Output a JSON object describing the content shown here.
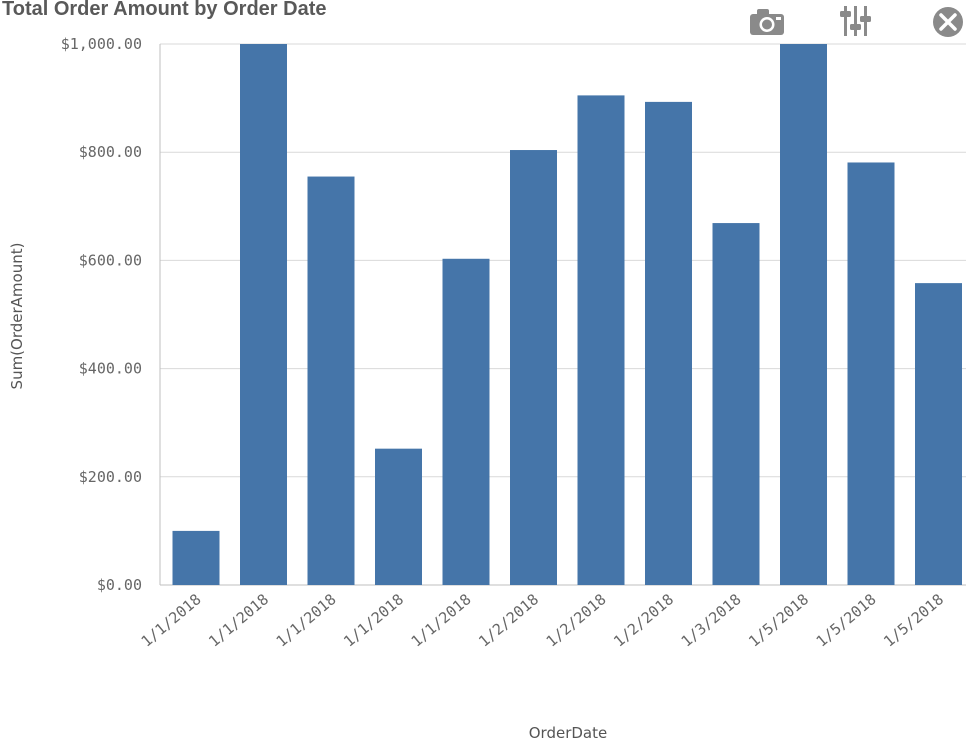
{
  "title": "Total Order Amount by Order Date",
  "toolbar": {
    "icons": [
      "camera-icon",
      "sliders-icon",
      "close-icon"
    ]
  },
  "colors": {
    "bar": "#4575a9",
    "grid": "#d9d9d9",
    "axis": "#bfbfbf"
  },
  "chart_data": {
    "type": "bar",
    "title": "Total Order Amount by Order Date",
    "xlabel": "OrderDate",
    "ylabel": "Sum(OrderAmount)",
    "categories": [
      "1/1/2018",
      "1/1/2018",
      "1/1/2018",
      "1/1/2018",
      "1/1/2018",
      "1/2/2018",
      "1/2/2018",
      "1/2/2018",
      "1/3/2018",
      "1/5/2018",
      "1/5/2018",
      "1/5/2018"
    ],
    "values": [
      100,
      1000,
      755,
      252,
      603,
      804,
      905,
      893,
      669,
      1000,
      781,
      558
    ],
    "ylim": [
      0,
      1000
    ],
    "yticks": [
      0,
      200,
      400,
      600,
      800,
      1000
    ],
    "ytick_labels": [
      "$0.00",
      "$200.00",
      "$400.00",
      "$600.00",
      "$800.00",
      "$1,000.00"
    ],
    "grid": true,
    "legend": "none"
  }
}
